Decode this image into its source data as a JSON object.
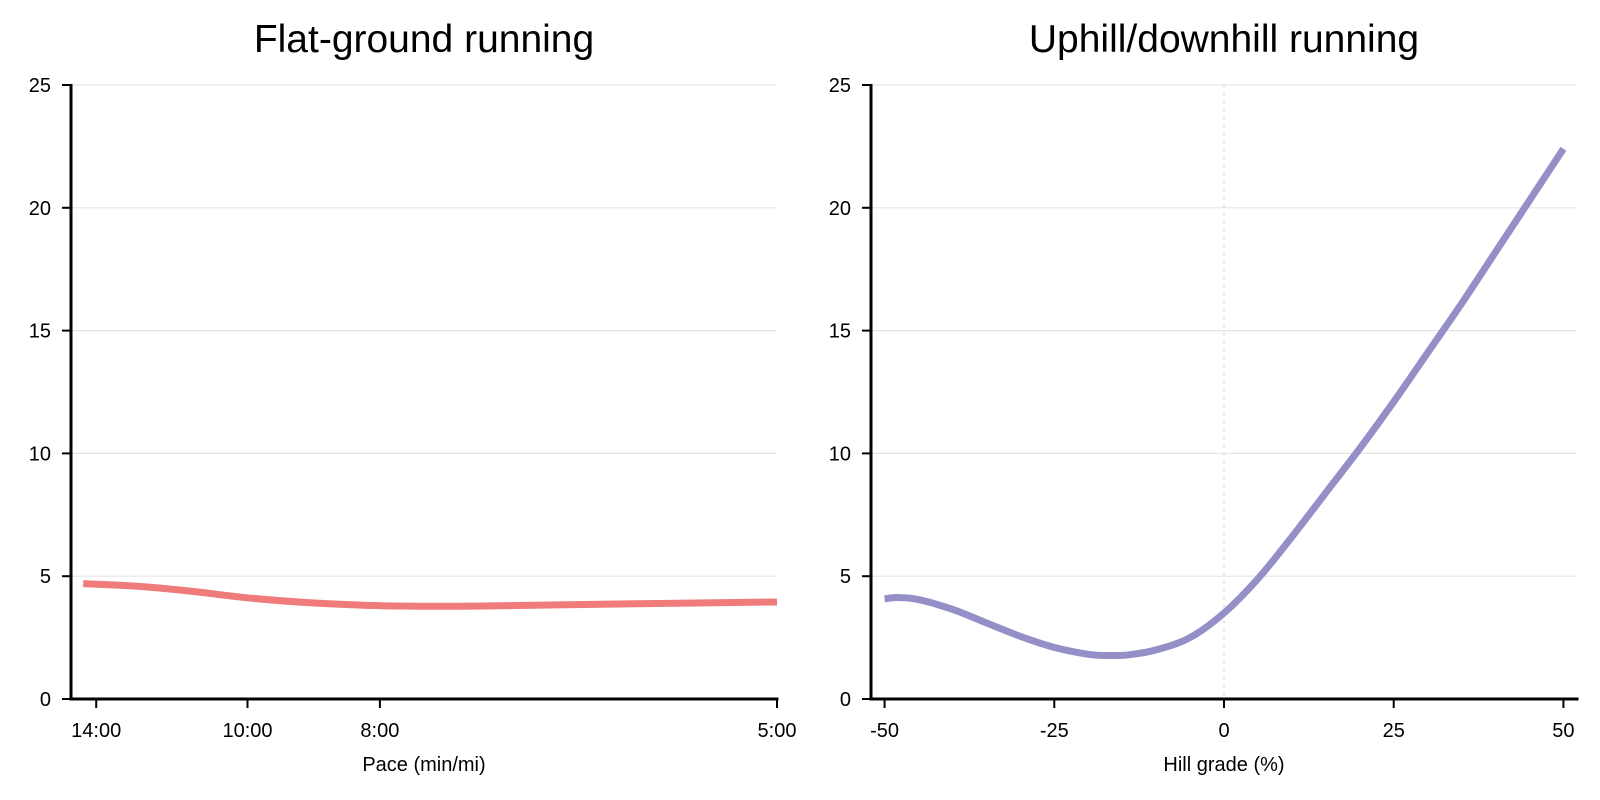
{
  "chart_data": [
    {
      "type": "line",
      "title": "Flat-ground running",
      "xlabel": "Pace (min/mi)",
      "ylabel": "",
      "ylim": [
        0,
        25
      ],
      "yticks": [
        0,
        5,
        10,
        15,
        20,
        25
      ],
      "xlim": [
        "15:00",
        "5:00"
      ],
      "x_scale": "reciprocal",
      "xticks": [
        "14:00",
        "10:00",
        "8:00",
        "5:00"
      ],
      "grid": "horizontal",
      "series": [
        {
          "color": "#f07b7b",
          "points": [
            {
              "x": "14:30",
              "y": 4.7
            },
            {
              "x": "13:00",
              "y": 4.62
            },
            {
              "x": "12:00",
              "y": 4.52
            },
            {
              "x": "11:00",
              "y": 4.35
            },
            {
              "x": "10:00",
              "y": 4.12
            },
            {
              "x": "9:00",
              "y": 3.93
            },
            {
              "x": "8:00",
              "y": 3.8
            },
            {
              "x": "7:00",
              "y": 3.78
            },
            {
              "x": "6:00",
              "y": 3.86
            },
            {
              "x": "5:00",
              "y": 3.95
            }
          ]
        }
      ]
    },
    {
      "type": "line",
      "title": "Uphill/downhill running",
      "xlabel": "Hill grade (%)",
      "ylabel": "",
      "xlim": [
        -52,
        52
      ],
      "ylim": [
        0,
        25
      ],
      "xticks": [
        -50,
        -25,
        0,
        25,
        50
      ],
      "yticks": [
        0,
        5,
        10,
        15,
        20,
        25
      ],
      "grid": "horizontal",
      "reference_line_x": 0,
      "series": [
        {
          "color": "#9490c7",
          "points": [
            {
              "x": -50,
              "y": 4.08
            },
            {
              "x": -48,
              "y": 4.13
            },
            {
              "x": -45,
              "y": 4.05
            },
            {
              "x": -40,
              "y": 3.65
            },
            {
              "x": -35,
              "y": 3.1
            },
            {
              "x": -30,
              "y": 2.55
            },
            {
              "x": -25,
              "y": 2.1
            },
            {
              "x": -20,
              "y": 1.82
            },
            {
              "x": -17,
              "y": 1.77
            },
            {
              "x": -14,
              "y": 1.8
            },
            {
              "x": -10,
              "y": 2.0
            },
            {
              "x": -5,
              "y": 2.5
            },
            {
              "x": 0,
              "y": 3.5
            },
            {
              "x": 5,
              "y": 4.9
            },
            {
              "x": 10,
              "y": 6.6
            },
            {
              "x": 15,
              "y": 8.4
            },
            {
              "x": 20,
              "y": 10.2
            },
            {
              "x": 25,
              "y": 12.1
            },
            {
              "x": 30,
              "y": 14.1
            },
            {
              "x": 35,
              "y": 16.1
            },
            {
              "x": 40,
              "y": 18.2
            },
            {
              "x": 45,
              "y": 20.3
            },
            {
              "x": 50,
              "y": 22.4
            }
          ]
        }
      ]
    }
  ]
}
